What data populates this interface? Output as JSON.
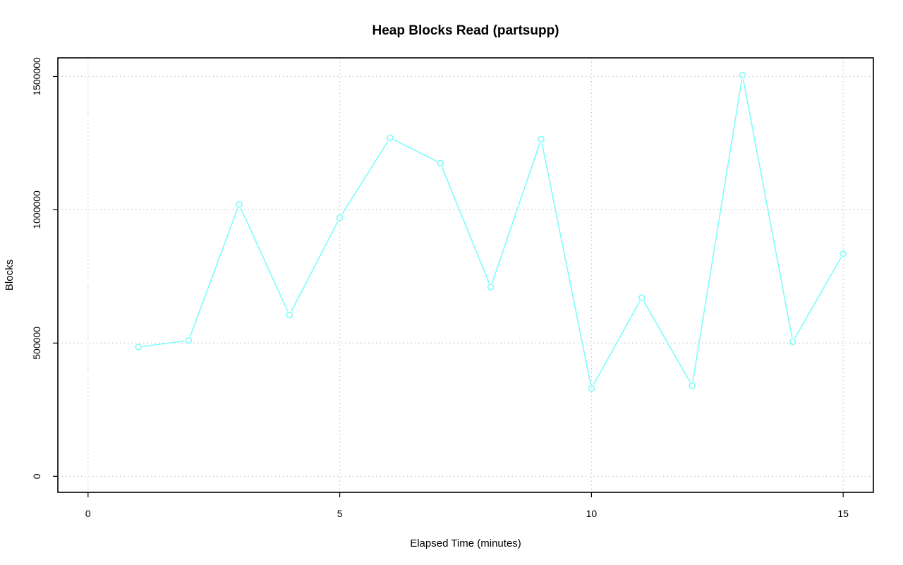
{
  "chart_data": {
    "type": "line",
    "title": "Heap Blocks Read (partsupp)",
    "xlabel": "Elapsed Time (minutes)",
    "ylabel": "Blocks",
    "x_ticks": [
      0,
      5,
      10,
      15
    ],
    "y_ticks": [
      0,
      500000,
      1000000,
      1500000
    ],
    "xlim": [
      -0.6,
      15.6
    ],
    "ylim": [
      -60000,
      1570000
    ],
    "grid": true,
    "color": "#7ffcfc",
    "series": [
      {
        "x": [
          1,
          2,
          3,
          4,
          5,
          6,
          7,
          8,
          9,
          10,
          11,
          12,
          13,
          14,
          15
        ],
        "values": [
          485000,
          510000,
          1020000,
          605000,
          970000,
          1270000,
          1175000,
          710000,
          1265000,
          330000,
          670000,
          340000,
          1505000,
          505000,
          835000
        ]
      }
    ]
  }
}
